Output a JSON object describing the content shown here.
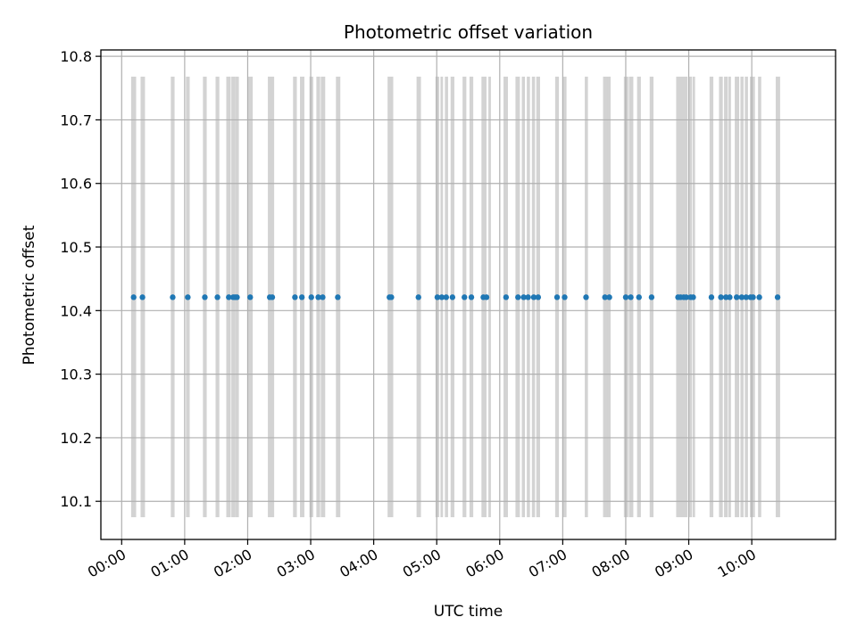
{
  "chart_data": {
    "type": "scatter",
    "title": "Photometric offset variation",
    "xlabel": "UTC time",
    "ylabel": "Photometric offset",
    "x_unit": "hours",
    "xlim": [
      -0.33,
      11.33
    ],
    "ylim": [
      10.04,
      10.81
    ],
    "grid": true,
    "x_ticks": [
      {
        "value": 0,
        "label": "00:00"
      },
      {
        "value": 1,
        "label": "01:00"
      },
      {
        "value": 2,
        "label": "02:00"
      },
      {
        "value": 3,
        "label": "03:00"
      },
      {
        "value": 4,
        "label": "04:00"
      },
      {
        "value": 5,
        "label": "05:00"
      },
      {
        "value": 6,
        "label": "06:00"
      },
      {
        "value": 7,
        "label": "07:00"
      },
      {
        "value": 8,
        "label": "08:00"
      },
      {
        "value": 9,
        "label": "09:00"
      },
      {
        "value": 10,
        "label": "10:00"
      }
    ],
    "y_ticks": [
      {
        "value": 10.1,
        "label": "10.1"
      },
      {
        "value": 10.2,
        "label": "10.2"
      },
      {
        "value": 10.3,
        "label": "10.3"
      },
      {
        "value": 10.4,
        "label": "10.4"
      },
      {
        "value": 10.5,
        "label": "10.5"
      },
      {
        "value": 10.6,
        "label": "10.6"
      },
      {
        "value": 10.7,
        "label": "10.7"
      },
      {
        "value": 10.8,
        "label": "10.8"
      }
    ],
    "bands": {
      "color": "#d3d3d3",
      "y_range": [
        10.075,
        10.768
      ],
      "intervals": [
        [
          0.15,
          0.23
        ],
        [
          0.3,
          0.37
        ],
        [
          0.78,
          0.84
        ],
        [
          1.02,
          1.08
        ],
        [
          1.29,
          1.35
        ],
        [
          1.49,
          1.55
        ],
        [
          1.66,
          1.73
        ],
        [
          1.74,
          1.8
        ],
        [
          1.8,
          1.86
        ],
        [
          2.0,
          2.08
        ],
        [
          2.32,
          2.42
        ],
        [
          2.72,
          2.78
        ],
        [
          2.83,
          2.9
        ],
        [
          2.98,
          3.04
        ],
        [
          3.09,
          3.15
        ],
        [
          3.16,
          3.23
        ],
        [
          3.4,
          3.47
        ],
        [
          4.22,
          4.31
        ],
        [
          4.68,
          4.75
        ],
        [
          4.98,
          5.04
        ],
        [
          5.06,
          5.1
        ],
        [
          5.13,
          5.18
        ],
        [
          5.22,
          5.28
        ],
        [
          5.41,
          5.47
        ],
        [
          5.52,
          5.58
        ],
        [
          5.71,
          5.79
        ],
        [
          5.82,
          5.86
        ],
        [
          6.06,
          6.13
        ],
        [
          6.25,
          6.32
        ],
        [
          6.35,
          6.4
        ],
        [
          6.43,
          6.48
        ],
        [
          6.51,
          6.56
        ],
        [
          6.58,
          6.64
        ],
        [
          6.88,
          6.94
        ],
        [
          7.0,
          7.06
        ],
        [
          7.35,
          7.4
        ],
        [
          7.64,
          7.71
        ],
        [
          7.71,
          7.76
        ],
        [
          7.97,
          8.04
        ],
        [
          8.05,
          8.12
        ],
        [
          8.18,
          8.24
        ],
        [
          8.38,
          8.44
        ],
        [
          8.8,
          8.98
        ],
        [
          9.0,
          9.05
        ],
        [
          9.06,
          9.1
        ],
        [
          9.33,
          9.39
        ],
        [
          9.48,
          9.54
        ],
        [
          9.56,
          9.62
        ],
        [
          9.63,
          9.67
        ],
        [
          9.73,
          9.8
        ],
        [
          9.82,
          9.87
        ],
        [
          9.89,
          9.94
        ],
        [
          9.97,
          10.05
        ],
        [
          10.1,
          10.15
        ],
        [
          10.38,
          10.45
        ]
      ]
    },
    "series": [
      {
        "name": "photometric offset",
        "color": "#1f77b4",
        "y_constant": 10.421,
        "x": [
          0.19,
          0.33,
          0.81,
          1.05,
          1.32,
          1.52,
          1.7,
          1.77,
          1.8,
          1.83,
          2.04,
          2.35,
          2.39,
          2.75,
          2.86,
          3.01,
          3.12,
          3.19,
          3.43,
          4.25,
          4.28,
          4.71,
          5.01,
          5.08,
          5.15,
          5.25,
          5.44,
          5.55,
          5.74,
          5.79,
          6.1,
          6.29,
          6.38,
          6.45,
          6.54,
          6.61,
          6.91,
          7.03,
          7.37,
          7.67,
          7.74,
          8.0,
          8.08,
          8.21,
          8.41,
          8.83,
          8.87,
          8.92,
          8.96,
          9.03,
          9.07,
          9.36,
          9.51,
          9.59,
          9.65,
          9.76,
          9.84,
          9.91,
          9.98,
          10.02,
          10.12,
          10.41
        ]
      }
    ]
  }
}
